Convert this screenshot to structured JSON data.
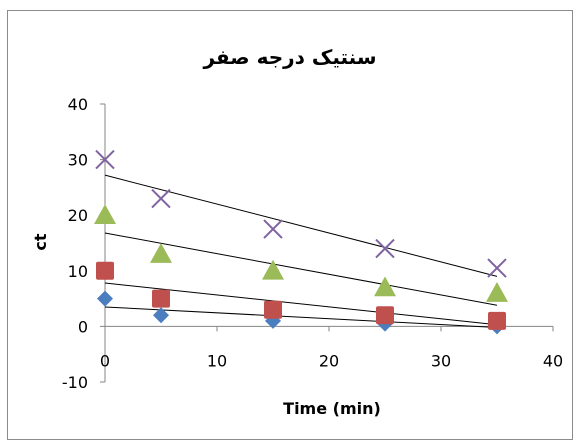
{
  "chart_data": {
    "type": "scatter",
    "title": "سنتیک درجه صفر",
    "xlabel": "Time (min)",
    "ylabel": "ct",
    "xlim": [
      0,
      40
    ],
    "ylim": [
      -10,
      40
    ],
    "xticks": [
      "0",
      "10",
      "20",
      "30",
      "40"
    ],
    "yticks": [
      "-10",
      "0",
      "10",
      "20",
      "30",
      "40"
    ],
    "grid": false,
    "legend": "none",
    "series": [
      {
        "marker": "diamond",
        "color": "#4a7ebf",
        "x": [
          0,
          5,
          15,
          25,
          35
        ],
        "y": [
          5,
          2,
          1,
          0.5,
          0
        ],
        "trendline": [
          3.5,
          -0.2
        ]
      },
      {
        "marker": "square",
        "color": "#c0504d",
        "x": [
          0,
          5,
          15,
          25,
          35
        ],
        "y": [
          10,
          5,
          3,
          2,
          1
        ],
        "trendline": [
          7.8,
          0.3
        ]
      },
      {
        "marker": "triangle",
        "color": "#9bbb59",
        "x": [
          0,
          5,
          15,
          25,
          35
        ],
        "y": [
          20,
          13,
          10,
          7,
          6
        ],
        "trendline": [
          16.8,
          3.8
        ]
      },
      {
        "marker": "x",
        "color": "#8064a2",
        "x": [
          0,
          5,
          15,
          25,
          35
        ],
        "y": [
          30,
          23,
          17.5,
          14,
          10.5
        ],
        "trendline": [
          27.2,
          9
        ]
      }
    ]
  }
}
